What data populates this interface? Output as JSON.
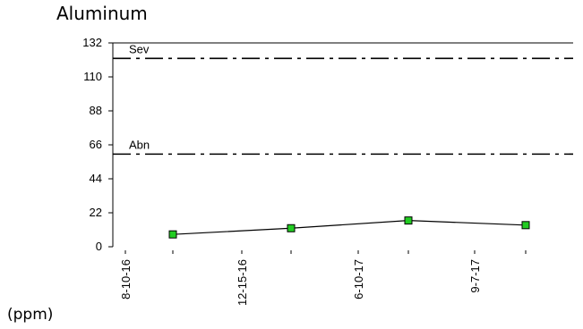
{
  "chart_data": {
    "type": "line",
    "title": "Aluminum",
    "ylabel": "(ppm)",
    "xlabel": "",
    "ylim": [
      0,
      132
    ],
    "yticks": [
      0,
      22,
      44,
      66,
      88,
      110,
      132
    ],
    "xtick_labels": [
      "8-10-16",
      "12-15-16",
      "6-10-17",
      "9-7-17"
    ],
    "series": [
      {
        "x": [
          "8-10-16",
          "12-15-16",
          "6-10-17",
          "9-7-17"
        ],
        "values": [
          8,
          12,
          17,
          14
        ],
        "marker_color": "#22cc22",
        "line_color": "#000000"
      }
    ],
    "thresholds": [
      {
        "label": "Sev",
        "value": 122
      },
      {
        "label": "Abn",
        "value": 60
      }
    ],
    "grid": false,
    "legend": "none"
  }
}
